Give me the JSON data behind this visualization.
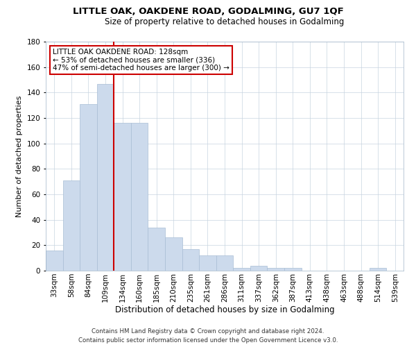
{
  "title": "LITTLE OAK, OAKDENE ROAD, GODALMING, GU7 1QF",
  "subtitle": "Size of property relative to detached houses in Godalming",
  "xlabel": "Distribution of detached houses by size in Godalming",
  "ylabel": "Number of detached properties",
  "bin_labels": [
    "33sqm",
    "58sqm",
    "84sqm",
    "109sqm",
    "134sqm",
    "160sqm",
    "185sqm",
    "210sqm",
    "235sqm",
    "261sqm",
    "286sqm",
    "311sqm",
    "337sqm",
    "362sqm",
    "387sqm",
    "413sqm",
    "438sqm",
    "463sqm",
    "488sqm",
    "514sqm",
    "539sqm"
  ],
  "bar_values": [
    16,
    71,
    131,
    147,
    116,
    116,
    34,
    26,
    17,
    12,
    12,
    2,
    4,
    2,
    2,
    0,
    0,
    0,
    0,
    2,
    0
  ],
  "bar_color": "#ccdaec",
  "bar_edgecolor": "#a8bdd4",
  "redline_index": 4,
  "annotation_title": "LITTLE OAK OAKDENE ROAD: 128sqm",
  "annotation_line1": "← 53% of detached houses are smaller (336)",
  "annotation_line2": "47% of semi-detached houses are larger (300) →",
  "annotation_box_color": "#ffffff",
  "annotation_box_edgecolor": "#cc0000",
  "redline_color": "#cc0000",
  "ylim": [
    0,
    180
  ],
  "yticks": [
    0,
    20,
    40,
    60,
    80,
    100,
    120,
    140,
    160,
    180
  ],
  "footer1": "Contains HM Land Registry data © Crown copyright and database right 2024.",
  "footer2": "Contains public sector information licensed under the Open Government Licence v3.0.",
  "background_color": "#ffffff",
  "grid_color": "#c8d4e0",
  "title_fontsize": 9.5,
  "subtitle_fontsize": 8.5,
  "xlabel_fontsize": 8.5,
  "ylabel_fontsize": 8.0,
  "tick_fontsize": 7.5,
  "footer_fontsize": 6.2,
  "annot_fontsize": 7.5
}
